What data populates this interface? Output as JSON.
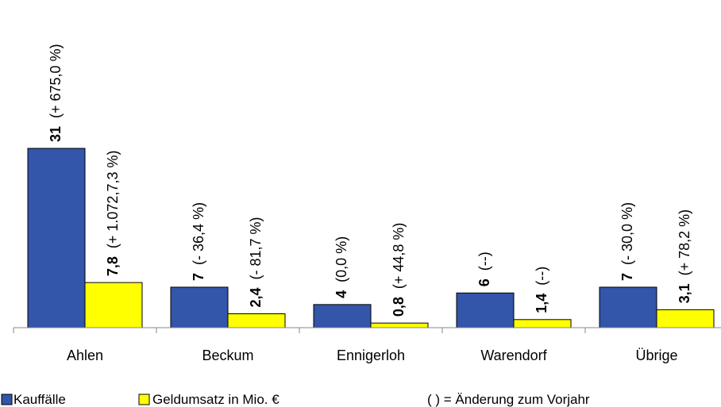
{
  "chart_data": {
    "type": "bar",
    "categories": [
      "Ahlen",
      "Beckum",
      "Ennigerloh",
      "Warendorf",
      "Übrige"
    ],
    "series": [
      {
        "name": "Kauffälle",
        "color": "#3355AA",
        "values": [
          31,
          7,
          4,
          6,
          7
        ],
        "value_labels": [
          "31",
          "7",
          "4",
          "6",
          "7"
        ],
        "change_labels": [
          "(+ 675,0 %)",
          "(- 36,4 %)",
          "(0,0 %)",
          "(--)",
          "(- 30,0 %)"
        ]
      },
      {
        "name": "Geldumsatz in Mio. €",
        "color": "#FFFF00",
        "values": [
          7.8,
          2.4,
          0.8,
          1.4,
          3.1
        ],
        "value_labels": [
          "7,8",
          "2,4",
          "0,8",
          "1,4",
          "3,1"
        ],
        "change_labels": [
          "(+ 1.072,7,3 %)",
          "(- 81,7 %)",
          "(+ 44,8 %)",
          "(--)",
          "(+ 78,2 %)"
        ]
      }
    ],
    "note": "( ) = Änderung zum Vorjahr",
    "grid": false,
    "legend_placement": "bottom-left"
  }
}
